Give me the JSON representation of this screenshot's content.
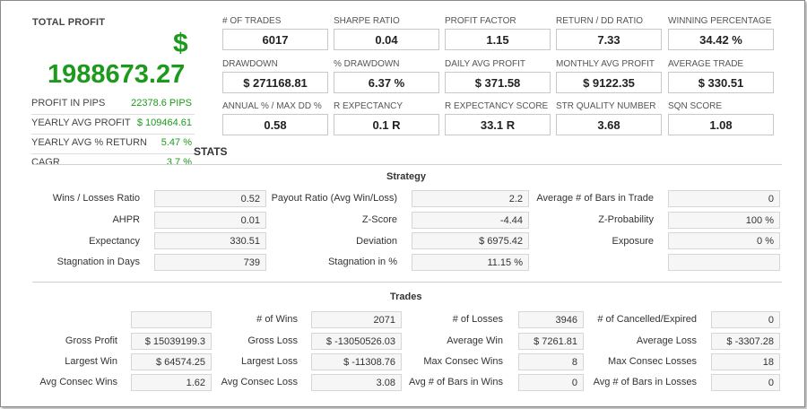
{
  "total": {
    "label": "TOTAL PROFIT",
    "currency": "$",
    "value": "1988673.27",
    "color": "#1d9a1d"
  },
  "side_stats": [
    {
      "label": "PROFIT IN PIPS",
      "value": "22378.6 PIPS"
    },
    {
      "label": "YEARLY AVG PROFIT",
      "value": "$ 109464.61"
    },
    {
      "label": "YEARLY AVG % RETURN",
      "value": "5.47 %"
    },
    {
      "label": "CAGR",
      "value": "3.7 %"
    }
  ],
  "metrics": [
    {
      "label": "# OF TRADES",
      "value": "6017"
    },
    {
      "label": "SHARPE RATIO",
      "value": "0.04"
    },
    {
      "label": "PROFIT FACTOR",
      "value": "1.15"
    },
    {
      "label": "RETURN / DD RATIO",
      "value": "7.33"
    },
    {
      "label": "WINNING PERCENTAGE",
      "value": "34.42 %"
    },
    {
      "label": "DRAWDOWN",
      "value": "$ 271168.81"
    },
    {
      "label": "% DRAWDOWN",
      "value": "6.37 %"
    },
    {
      "label": "DAILY AVG PROFIT",
      "value": "$ 371.58"
    },
    {
      "label": "MONTHLY AVG PROFIT",
      "value": "$ 9122.35"
    },
    {
      "label": "AVERAGE TRADE",
      "value": "$ 330.51"
    },
    {
      "label": "ANNUAL % / MAX DD %",
      "value": "0.58"
    },
    {
      "label": "R EXPECTANCY",
      "value": "0.1 R"
    },
    {
      "label": "R EXPECTANCY SCORE",
      "value": "33.1 R"
    },
    {
      "label": "STR QUALITY NUMBER",
      "value": "3.68"
    },
    {
      "label": "SQN SCORE",
      "value": "1.08"
    }
  ],
  "stats_title": "STATS",
  "strategy": {
    "title": "Strategy",
    "rows": [
      [
        {
          "label": "Wins / Losses Ratio",
          "value": "0.52"
        },
        {
          "label": "Payout Ratio (Avg Win/Loss)",
          "value": "2.2"
        },
        {
          "label": "Average # of Bars in Trade",
          "value": "0"
        }
      ],
      [
        {
          "label": "AHPR",
          "value": "0.01"
        },
        {
          "label": "Z-Score",
          "value": "-4.44"
        },
        {
          "label": "Z-Probability",
          "value": "100 %"
        }
      ],
      [
        {
          "label": "Expectancy",
          "value": "330.51"
        },
        {
          "label": "Deviation",
          "value": "$ 6975.42"
        },
        {
          "label": "Exposure",
          "value": "0 %"
        }
      ],
      [
        {
          "label": "Stagnation in Days",
          "value": "739"
        },
        {
          "label": "Stagnation in %",
          "value": "11.15 %"
        },
        {
          "label": "",
          "value": ""
        }
      ]
    ]
  },
  "trades": {
    "title": "Trades",
    "rows": [
      [
        {
          "label": "",
          "value": ""
        },
        {
          "label": "# of Wins",
          "value": "2071"
        },
        {
          "label": "# of Losses",
          "value": "3946"
        },
        {
          "label": "# of Cancelled/Expired",
          "value": "0"
        }
      ],
      [
        {
          "label": "Gross Profit",
          "value": "$ 15039199.3"
        },
        {
          "label": "Gross Loss",
          "value": "$ -13050526.03"
        },
        {
          "label": "Average Win",
          "value": "$ 7261.81"
        },
        {
          "label": "Average Loss",
          "value": "$ -3307.28"
        }
      ],
      [
        {
          "label": "Largest Win",
          "value": "$ 64574.25"
        },
        {
          "label": "Largest Loss",
          "value": "$ -11308.76"
        },
        {
          "label": "Max Consec Wins",
          "value": "8"
        },
        {
          "label": "Max Consec Losses",
          "value": "18"
        }
      ],
      [
        {
          "label": "Avg Consec Wins",
          "value": "1.62"
        },
        {
          "label": "Avg Consec Loss",
          "value": "3.08"
        },
        {
          "label": "Avg # of Bars in Wins",
          "value": "0"
        },
        {
          "label": "Avg # of Bars in Losses",
          "value": "0"
        }
      ]
    ]
  }
}
